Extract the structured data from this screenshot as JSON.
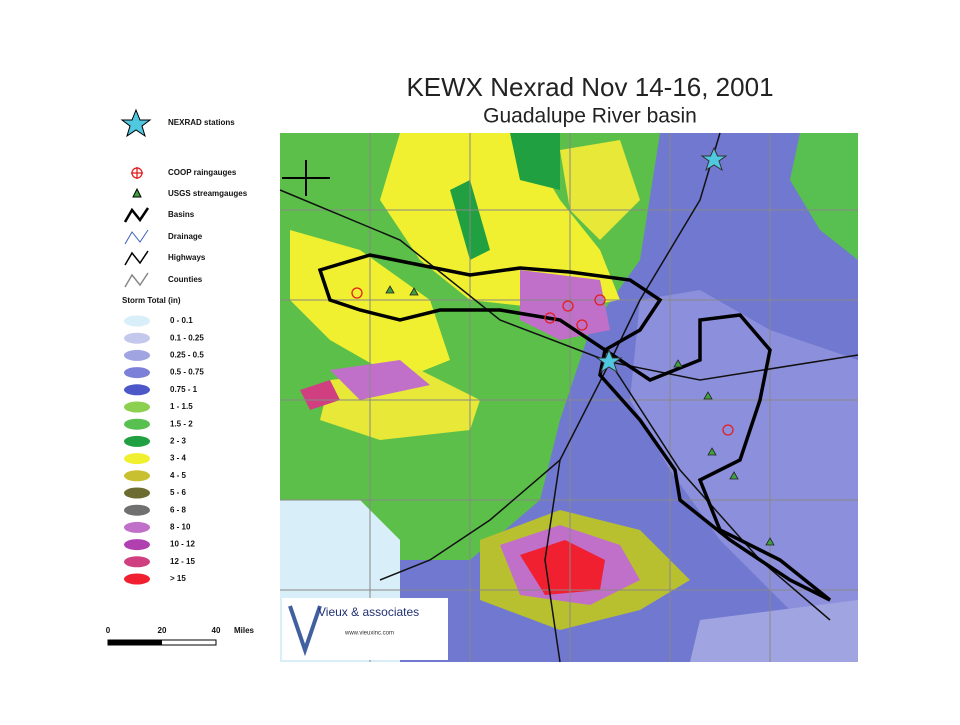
{
  "header": {
    "title": "KEWX Nexrad  Nov 14-16, 2001",
    "subtitle": "Guadalupe River basin"
  },
  "legend": {
    "items": [
      {
        "label": "NEXRAD stations"
      },
      {
        "label": "COOP raingauges"
      },
      {
        "label": "USGS streamgauges"
      },
      {
        "label": "Basins"
      },
      {
        "label": "Drainage"
      },
      {
        "label": "Highways"
      },
      {
        "label": "Counties"
      }
    ],
    "storm_total": {
      "title": "Storm Total (in)",
      "classes": [
        {
          "label": "0 - 0.1",
          "color": "#d8eef8"
        },
        {
          "label": "0.1 - 0.25",
          "color": "#c4c8ec"
        },
        {
          "label": "0.25 - 0.5",
          "color": "#a0a4e0"
        },
        {
          "label": "0.5 - 0.75",
          "color": "#7c80d8"
        },
        {
          "label": "0.75 - 1",
          "color": "#4c58c8"
        },
        {
          "label": "1 - 1.5",
          "color": "#8cd050"
        },
        {
          "label": "1.5 - 2",
          "color": "#58c050"
        },
        {
          "label": "2 - 3",
          "color": "#20a040"
        },
        {
          "label": "3 - 4",
          "color": "#f0f030"
        },
        {
          "label": "4 - 5",
          "color": "#c8c030"
        },
        {
          "label": "5 - 6",
          "color": "#6c6c30"
        },
        {
          "label": "6 - 8",
          "color": "#707070"
        },
        {
          "label": "8 - 10",
          "color": "#c070c8"
        },
        {
          "label": "10 - 12",
          "color": "#b040b0"
        },
        {
          "label": "12 - 15",
          "color": "#d04080"
        },
        {
          "label": "> 15",
          "color": "#f02030"
        }
      ]
    }
  },
  "scale_bar": {
    "ticks": [
      "0",
      "20",
      "40"
    ],
    "unit": "Miles"
  },
  "logo": {
    "name": "Vieux & associates",
    "url": "www.vieuxinc.com"
  }
}
